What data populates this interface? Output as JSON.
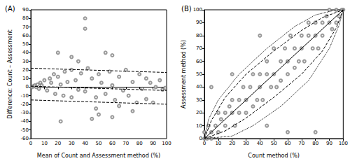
{
  "chart_data": [
    {
      "type": "scatter",
      "title": "(A)",
      "x_label": "Mean of Count and Assessment method (%)",
      "y_label": "Difference: Count – Assessment",
      "xlim": [
        0,
        100
      ],
      "xticks": [
        0,
        10,
        20,
        30,
        40,
        50,
        60,
        70,
        80,
        90,
        100
      ],
      "ylim": [
        -60,
        90
      ],
      "yticks": [
        -60,
        -50,
        -40,
        -30,
        -20,
        -10,
        0,
        10,
        20,
        30,
        40,
        50,
        60,
        70,
        80,
        90
      ],
      "grid": false,
      "series": [
        {
          "type": "scatter",
          "marker": "open_circle",
          "color": "#7f7f7f",
          "x": [
            1,
            2,
            3,
            4,
            5,
            6,
            7,
            8,
            10,
            12,
            14,
            15,
            17,
            18,
            20,
            22,
            24,
            25,
            27,
            30,
            30,
            33,
            35,
            37,
            40,
            40,
            40,
            42,
            45,
            45,
            48,
            50,
            50,
            52,
            55,
            55,
            58,
            60,
            60,
            62,
            65,
            68,
            70,
            72,
            75,
            75,
            78,
            80,
            82,
            85,
            85,
            88,
            90,
            92,
            95,
            97,
            99,
            20,
            30,
            22,
            60,
            35,
            48,
            65
          ],
          "values": [
            0,
            1,
            2,
            0,
            3,
            -2,
            5,
            2,
            8,
            -4,
            10,
            5,
            15,
            -8,
            12,
            3,
            -10,
            18,
            6,
            -12,
            20,
            8,
            -3,
            16,
            80,
            68,
            -5,
            22,
            10,
            -37,
            -12,
            15,
            -32,
            5,
            40,
            -8,
            18,
            -35,
            2,
            -15,
            12,
            -4,
            20,
            -10,
            6,
            -28,
            -18,
            15,
            -2,
            10,
            -14,
            5,
            -18,
            0,
            8,
            -3,
            -1,
            40,
            35,
            -40,
            37,
            30,
            -25,
            -22
          ]
        },
        {
          "type": "line",
          "line_style": "dashed",
          "color": "#000000",
          "x": [
            0,
            100
          ],
          "values": [
            22,
            17
          ]
        },
        {
          "type": "line",
          "line_style": "dashed",
          "color": "#000000",
          "x": [
            0,
            100
          ],
          "values": [
            1,
            -4
          ]
        },
        {
          "type": "line",
          "line_style": "dashed",
          "color": "#000000",
          "x": [
            0,
            100
          ],
          "values": [
            -15,
            -20
          ]
        }
      ]
    },
    {
      "type": "scatter",
      "title": "(B)",
      "x_label": "Count method (%)",
      "y_label": "Assessment method (%)",
      "xlim": [
        0,
        100
      ],
      "xticks": [
        0,
        10,
        20,
        30,
        40,
        50,
        60,
        70,
        80,
        90,
        100
      ],
      "ylim": [
        0,
        100
      ],
      "yticks": [
        0,
        10,
        20,
        30,
        40,
        50,
        60,
        70,
        80,
        90,
        100
      ],
      "grid": false,
      "series": [
        {
          "type": "scatter",
          "marker": "open_circle",
          "color": "#7f7f7f",
          "x": [
            0,
            0,
            2,
            3,
            5,
            5,
            8,
            10,
            10,
            12,
            15,
            15,
            18,
            20,
            20,
            22,
            25,
            25,
            28,
            30,
            30,
            33,
            35,
            35,
            38,
            40,
            40,
            42,
            45,
            45,
            48,
            50,
            50,
            52,
            55,
            55,
            58,
            60,
            60,
            62,
            65,
            65,
            68,
            70,
            70,
            72,
            75,
            75,
            78,
            80,
            80,
            82,
            85,
            85,
            88,
            90,
            90,
            92,
            95,
            95,
            97,
            100,
            99,
            40,
            45,
            60,
            80,
            20,
            5
          ],
          "values": [
            0,
            5,
            0,
            10,
            5,
            0,
            10,
            20,
            5,
            15,
            10,
            20,
            25,
            20,
            30,
            10,
            30,
            20,
            40,
            30,
            20,
            40,
            50,
            25,
            30,
            40,
            50,
            30,
            50,
            60,
            40,
            50,
            70,
            40,
            60,
            45,
            70,
            60,
            50,
            80,
            70,
            55,
            60,
            80,
            70,
            60,
            80,
            90,
            70,
            80,
            90,
            70,
            90,
            80,
            95,
            90,
            100,
            85,
            100,
            90,
            95,
            100,
            100,
            80,
            10,
            5,
            5,
            50,
            40
          ]
        },
        {
          "type": "line",
          "line_style": "solid",
          "color": "#000000",
          "x": [
            0,
            100
          ],
          "values": [
            0,
            100
          ]
        },
        {
          "type": "line",
          "line_style": "dashed",
          "color": "#000000",
          "x": [
            0,
            5,
            15,
            30,
            50,
            70,
            85,
            100
          ],
          "values": [
            0,
            14,
            32,
            50,
            68,
            84,
            94,
            100
          ]
        },
        {
          "type": "line",
          "line_style": "dashed",
          "color": "#000000",
          "x": [
            0,
            15,
            30,
            50,
            70,
            85,
            95,
            100
          ],
          "values": [
            0,
            6,
            16,
            32,
            50,
            68,
            86,
            100
          ]
        },
        {
          "type": "line",
          "line_style": "dotted",
          "color": "#000000",
          "x": [
            0,
            3,
            10,
            25,
            45,
            65,
            80,
            95,
            100
          ],
          "values": [
            0,
            15,
            30,
            50,
            70,
            87,
            96,
            100,
            100
          ]
        },
        {
          "type": "line",
          "line_style": "dotted",
          "color": "#000000",
          "x": [
            0,
            20,
            35,
            55,
            75,
            90,
            97,
            100
          ],
          "values": [
            0,
            2,
            10,
            25,
            45,
            70,
            88,
            100
          ]
        }
      ]
    }
  ]
}
